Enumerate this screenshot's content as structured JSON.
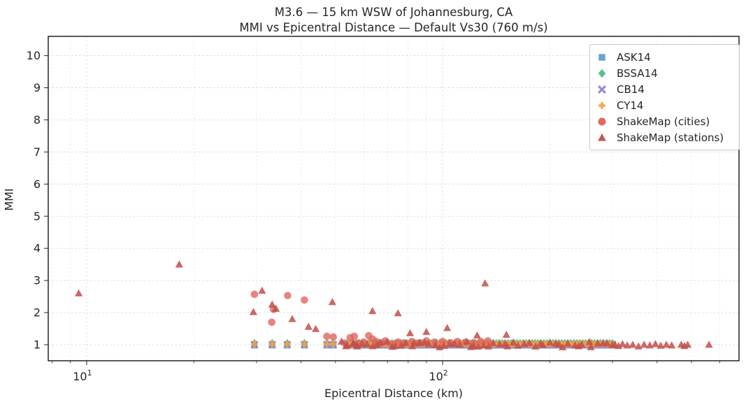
{
  "chart": {
    "title": "M3.6 — 15 km WSW of Johannesburg, CA",
    "subtitle": "MMI vs Epicentral Distance — Default Vs30 (760 m/s)",
    "xlabel": "Epicentral Distance (km)",
    "ylabel": "MMI"
  },
  "chart_data": {
    "type": "scatter",
    "title": "M3.6 — 15 km WSW of Johannesburg, CA",
    "subtitle": "MMI vs Epicentral Distance — Default Vs30 (760 m/s)",
    "xlabel": "Epicentral Distance (km)",
    "ylabel": "MMI",
    "x_scale": "log",
    "xlim": [
      7.8,
      680
    ],
    "ylim": [
      0.5,
      10.6
    ],
    "y_ticks": [
      1,
      2,
      3,
      4,
      5,
      6,
      7,
      8,
      9,
      10
    ],
    "x_major_ticks": [
      {
        "value": 10,
        "base": "10",
        "exp": "1"
      },
      {
        "value": 100,
        "base": "10",
        "exp": "2"
      }
    ],
    "x_minor_ticks": [
      8,
      9,
      20,
      30,
      40,
      50,
      60,
      70,
      80,
      90,
      200,
      300,
      400,
      500,
      600
    ],
    "grid": {
      "major": true,
      "minor": true,
      "style": "dashed"
    },
    "legend_position": "upper right",
    "series": [
      {
        "name": "ASK14",
        "marker": "square",
        "color": "#5ea0d0",
        "opacity": 0.85,
        "mmi_constant": 0.98,
        "distances_discrete": [
          29.6,
          33.2,
          36.6,
          40.9,
          47.3,
          49.3
        ],
        "distance_band": {
          "min": 54,
          "max": 300,
          "count": 90
        }
      },
      {
        "name": "BSSA14",
        "marker": "diamond",
        "color": "#4fbe85",
        "opacity": 0.85,
        "mmi_constant": 1.05,
        "distances_discrete": [
          29.6,
          33.2,
          36.6,
          40.9,
          47.3,
          49.3
        ],
        "distance_band": {
          "min": 54,
          "max": 300,
          "count": 90
        }
      },
      {
        "name": "CB14",
        "marker": "xmark",
        "color": "#9b7fce",
        "opacity": 0.85,
        "mmi_constant": 1.0,
        "distances_discrete": [
          29.6,
          33.2,
          36.6,
          40.9,
          47.3,
          49.3
        ],
        "distance_band": {
          "min": 54,
          "max": 300,
          "count": 90
        }
      },
      {
        "name": "CY14",
        "marker": "plus",
        "color": "#f2a43a",
        "opacity": 0.9,
        "mmi_constant": 1.02,
        "distances_discrete": [
          29.6,
          33.2,
          36.6,
          40.9,
          47.3,
          49.3
        ],
        "distance_band": {
          "min": 54,
          "max": 300,
          "count": 90
        }
      },
      {
        "name": "ShakeMap (cities)",
        "marker": "circle",
        "color": "#e2615c",
        "opacity": 0.78,
        "points": [
          [
            29.6,
            2.57
          ],
          [
            33.5,
            2.1
          ],
          [
            33.1,
            1.7
          ],
          [
            36.7,
            2.53
          ],
          [
            40.9,
            2.39
          ],
          [
            47.3,
            1.26
          ],
          [
            49.3,
            1.24
          ],
          [
            53.0,
            1.05
          ],
          [
            55.0,
            1.22
          ],
          [
            56.5,
            1.26
          ],
          [
            58.0,
            1.05
          ],
          [
            60.0,
            1.08
          ],
          [
            62.0,
            1.28
          ],
          [
            63.5,
            1.18
          ],
          [
            65.0,
            1.1
          ],
          [
            67.0,
            1.05
          ],
          [
            69.0,
            1.12
          ],
          [
            72.0,
            1.02
          ],
          [
            75.0,
            1.08
          ],
          [
            78.0,
            1.05
          ],
          [
            82.0,
            1.1
          ],
          [
            86.0,
            1.06
          ],
          [
            90.0,
            1.12
          ],
          [
            95.0,
            1.08
          ],
          [
            100.0,
            1.1
          ],
          [
            105.0,
            1.06
          ],
          [
            110.0,
            1.1
          ],
          [
            116.0,
            1.08
          ],
          [
            122.0,
            1.06
          ],
          [
            128.0,
            1.1
          ],
          [
            134.0,
            1.12
          ]
        ]
      },
      {
        "name": "ShakeMap (stations)",
        "marker": "triangle",
        "color": "#c24f4a",
        "opacity": 0.85,
        "points": [
          [
            9.5,
            2.6
          ],
          [
            18.2,
            3.5
          ],
          [
            29.4,
            2.02
          ],
          [
            31.1,
            2.68
          ],
          [
            33.2,
            2.25
          ],
          [
            34.0,
            2.12
          ],
          [
            37.8,
            1.8
          ],
          [
            42.0,
            1.56
          ],
          [
            44.0,
            1.49
          ],
          [
            49.0,
            2.33
          ],
          [
            52.0,
            1.1
          ],
          [
            54.0,
            0.98
          ],
          [
            56.0,
            1.04
          ],
          [
            57.5,
            0.95
          ],
          [
            63.5,
            2.05
          ],
          [
            74.9,
            1.98
          ],
          [
            81.0,
            1.36
          ],
          [
            90.0,
            1.4
          ],
          [
            103.0,
            1.52
          ],
          [
            125.0,
            1.29
          ],
          [
            131.6,
            2.91
          ],
          [
            151.0,
            1.31
          ],
          [
            305.0,
            1.0
          ],
          [
            312.0,
            0.96
          ],
          [
            320.0,
            1.02
          ],
          [
            330.0,
            0.98
          ],
          [
            342.0,
            1.0
          ],
          [
            355.0,
            0.95
          ],
          [
            368.0,
            1.0
          ],
          [
            382.0,
            0.98
          ],
          [
            396.0,
            1.02
          ],
          [
            410.0,
            0.97
          ],
          [
            425.0,
            1.0
          ],
          [
            440.0,
            0.98
          ],
          [
            468.0,
            1.0
          ],
          [
            478.0,
            0.96
          ],
          [
            488.0,
            1.0
          ],
          [
            560.0,
            1.0
          ]
        ],
        "scatter_band": {
          "min": 54,
          "max": 300,
          "count": 55,
          "mmi_min": 0.92,
          "mmi_max": 1.1
        }
      }
    ]
  },
  "legend": {
    "items": [
      {
        "label": "ASK14",
        "marker": "square",
        "color": "#5ea0d0"
      },
      {
        "label": "BSSA14",
        "marker": "diamond",
        "color": "#4fbe85"
      },
      {
        "label": "CB14",
        "marker": "xmark",
        "color": "#9b7fce"
      },
      {
        "label": "CY14",
        "marker": "plus",
        "color": "#f2a43a"
      },
      {
        "label": "ShakeMap (cities)",
        "marker": "circle",
        "color": "#e2615c"
      },
      {
        "label": "ShakeMap (stations)",
        "marker": "triangle",
        "color": "#c24f4a"
      }
    ]
  },
  "style": {
    "spine_color": "#000000",
    "tick_color": "#333333",
    "grid_major_color": "#b8b8b8",
    "grid_minor_color": "#cccccc",
    "text_color": "#262626",
    "background": "#ffffff"
  }
}
